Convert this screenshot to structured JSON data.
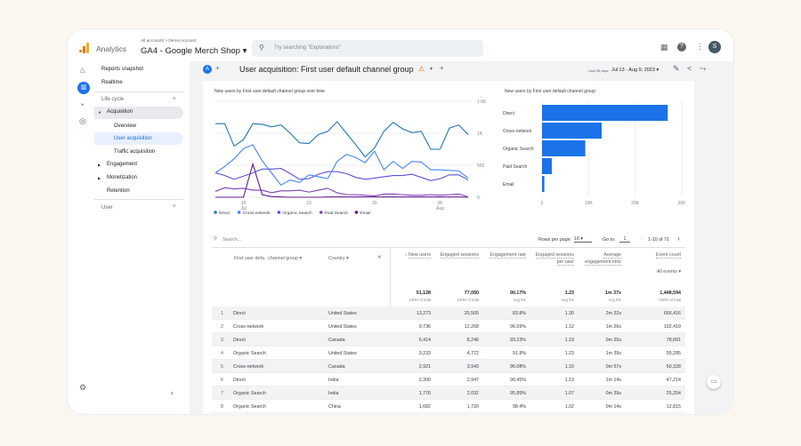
{
  "app": {
    "name": "Analytics",
    "breadcrumb": "All accounts > Demo Account",
    "property": "GA4 - Google Merch Shop",
    "search_placeholder": "Try searching \"Explorations\"",
    "avatar": "S"
  },
  "sidebar": {
    "items": [
      {
        "label": "Reports snapshot"
      },
      {
        "label": "Realtime"
      },
      {
        "label": "Life cycle"
      },
      {
        "label": "Acquisition"
      },
      {
        "label": "Overview"
      },
      {
        "label": "User acquisition"
      },
      {
        "label": "Traffic acquisition"
      },
      {
        "label": "Engagement"
      },
      {
        "label": "Monetization"
      },
      {
        "label": "Retention"
      },
      {
        "label": "User"
      }
    ]
  },
  "report": {
    "comparison_badge": "A",
    "title": "User acquisition: First user default channel group",
    "date_prefix": "Last 28 days",
    "date_range": "Jul 13 - Aug 9, 2023"
  },
  "colors": {
    "accent": "#1a73e8",
    "direct": "#1f77b4",
    "cross_network": "#4285f4",
    "organic": "#5c4fd6",
    "paid": "#7b3fb3",
    "email": "#5e1b8c"
  },
  "chart_data": [
    {
      "type": "line",
      "title": "New users by First user default channel group over time",
      "x_ticks": [
        "16 Jul",
        "23",
        "30",
        "06 Aug"
      ],
      "y_ticks": [
        "0",
        "500",
        "1K",
        "1.5K"
      ],
      "ylim": [
        0,
        1500
      ],
      "x_start": "2023-07-13",
      "x_end": "2023-08-09",
      "legend": "bottom",
      "series": [
        {
          "name": "Direct",
          "values": [
            1150,
            1150,
            800,
            900,
            1150,
            1140,
            1100,
            1130,
            1000,
            850,
            840,
            980,
            1030,
            1180,
            1000,
            820,
            630,
            770,
            1030,
            1170,
            1070,
            1010,
            1030,
            750,
            750,
            1080,
            1130,
            980
          ]
        },
        {
          "name": "Cross-network",
          "values": [
            380,
            480,
            600,
            760,
            820,
            570,
            380,
            190,
            270,
            230,
            350,
            320,
            290,
            560,
            670,
            620,
            540,
            720,
            430,
            560,
            450,
            560,
            550,
            430,
            430,
            420,
            410,
            300
          ]
        },
        {
          "name": "Organic Search",
          "values": [
            380,
            340,
            280,
            330,
            380,
            440,
            440,
            450,
            370,
            280,
            290,
            360,
            400,
            400,
            370,
            310,
            280,
            300,
            320,
            340,
            340,
            360,
            310,
            260,
            290,
            350,
            350,
            270
          ]
        },
        {
          "name": "Paid Search",
          "values": [
            90,
            150,
            130,
            140,
            110,
            110,
            70,
            100,
            100,
            110,
            80,
            110,
            140,
            70,
            40,
            40,
            30,
            20,
            50,
            50,
            40,
            30,
            30,
            40,
            30,
            40,
            50,
            5
          ]
        },
        {
          "name": "Email",
          "values": [
            0,
            0,
            0,
            0,
            520,
            40,
            10,
            5,
            0,
            0,
            0,
            0,
            5,
            5,
            5,
            5,
            5,
            5,
            5,
            5,
            5,
            5,
            5,
            5,
            5,
            5,
            5,
            0
          ]
        }
      ]
    },
    {
      "type": "bar",
      "orientation": "horizontal",
      "title": "New users by First user default channel group",
      "categories": [
        "Direct",
        "Cross-network",
        "Organic Search",
        "Paid Search",
        "Email"
      ],
      "values": [
        27000,
        12800,
        9300,
        2100,
        500
      ],
      "x_ticks": [
        "0",
        "10K",
        "20K",
        "30K"
      ],
      "xlim": [
        0,
        30000
      ]
    }
  ],
  "table": {
    "search_placeholder": "Search...",
    "rows_per_page_label": "Rows per page:",
    "rows_per_page": "10",
    "goto_label": "Go to:",
    "goto_value": "1",
    "pagination": "1-10 of 71",
    "dim_headers": [
      "First user defa...channel group",
      "Country"
    ],
    "headers": [
      "New users",
      "Engaged sessions",
      "Engagement rate",
      "Engaged sessions per user",
      "Average engagement time",
      "Event count"
    ],
    "event_filter": "All events",
    "totals": [
      "51,128",
      "77,050",
      "90.17%",
      "1.23",
      "1m 37s",
      "1,448,594"
    ],
    "totals_sub": [
      "100% of total",
      "100% of total",
      "Avg 0%",
      "Avg 0%",
      "Avg 0%",
      "100% of total"
    ],
    "rows": [
      [
        "1",
        "Direct",
        "United States",
        "13,273",
        "25,505",
        "83.8%",
        "1.30",
        "2m 32s",
        "666,416"
      ],
      [
        "2",
        "Cross-network",
        "United States",
        "9,736",
        "12,268",
        "96.59%",
        "1.12",
        "1m 26s",
        "192,419"
      ],
      [
        "3",
        "Direct",
        "Canada",
        "6,414",
        "8,246",
        "93.23%",
        "1.19",
        "0m 25s",
        "78,681"
      ],
      [
        "4",
        "Organic Search",
        "United States",
        "3,233",
        "4,772",
        "91.8%",
        "1.23",
        "1m 39s",
        "95,285"
      ],
      [
        "5",
        "Cross-network",
        "Canada",
        "2,921",
        "3,943",
        "96.08%",
        "1.10",
        "0m 57s",
        "50,328"
      ],
      [
        "6",
        "Direct",
        "India",
        "2,300",
        "2,947",
        "90.45%",
        "1.13",
        "1m 14s",
        "47,214"
      ],
      [
        "7",
        "Organic Search",
        "India",
        "1,776",
        "2,032",
        "95.85%",
        "1.07",
        "0m 39s",
        "25,254"
      ],
      [
        "8",
        "Organic Search",
        "China",
        "1,682",
        "1,720",
        "98.4%",
        "1.02",
        "0m 14s",
        "12,815"
      ]
    ]
  }
}
